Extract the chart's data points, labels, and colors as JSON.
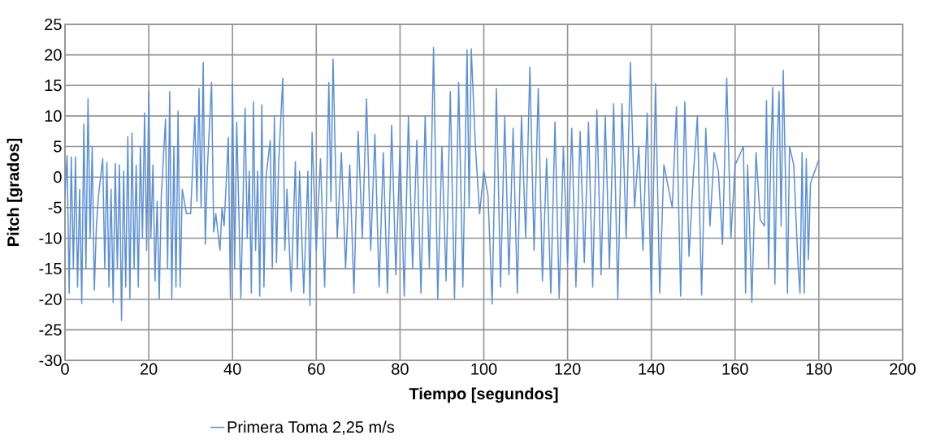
{
  "chart_data": {
    "type": "line",
    "xlabel": "Tiempo [segundos]",
    "ylabel": "Pitch [grados]",
    "xlim": [
      0,
      200
    ],
    "ylim": [
      -30,
      25
    ],
    "xticks": [
      0,
      20,
      40,
      60,
      80,
      100,
      120,
      140,
      160,
      180,
      200
    ],
    "yticks": [
      -30,
      -25,
      -20,
      -15,
      -10,
      -5,
      0,
      5,
      10,
      15,
      20,
      25
    ],
    "grid": true,
    "legend": "bottom",
    "line_style": "solid",
    "series": [
      {
        "name": "Primera Toma 2,25 m/s",
        "color": "#5b8fd6",
        "x": [
          0,
          0.5,
          1,
          1.5,
          2,
          2.5,
          3,
          3.5,
          4,
          4.5,
          5,
          5.5,
          6,
          6.5,
          7,
          7.5,
          8,
          9,
          9.5,
          10,
          10.5,
          11,
          11.5,
          12,
          12.5,
          13,
          13.5,
          14,
          14.5,
          15,
          15.5,
          16,
          16.5,
          17,
          17.5,
          18,
          18.5,
          19,
          19.5,
          20,
          20.5,
          21,
          21.5,
          22,
          22.5,
          23,
          24,
          24.5,
          25,
          25.5,
          26,
          26.5,
          27,
          27.5,
          28,
          29,
          30,
          31,
          31.5,
          32,
          32.5,
          33,
          33.5,
          34,
          35,
          35.5,
          36,
          37,
          37.5,
          38,
          39,
          39.5,
          40,
          40.5,
          41,
          42,
          43,
          43.5,
          44,
          44.5,
          45,
          45.5,
          46,
          46.5,
          47,
          47.5,
          48,
          49,
          49.5,
          50,
          50.5,
          51,
          52,
          52.5,
          53,
          54,
          55,
          55.5,
          56,
          57,
          58,
          58.5,
          59,
          60,
          61,
          62,
          63,
          63.5,
          64,
          65,
          66,
          67,
          68,
          69,
          70,
          71,
          72,
          73,
          74,
          75,
          76,
          77,
          78,
          79,
          80,
          81,
          82,
          83,
          84,
          85,
          86,
          87,
          88,
          89,
          90,
          91,
          92,
          93,
          94,
          95,
          96,
          96.5,
          97,
          98,
          99,
          100,
          101,
          102,
          103,
          104,
          105,
          106,
          107,
          108,
          109,
          110,
          111,
          112,
          113,
          114,
          115,
          116,
          117,
          118,
          119,
          120,
          121,
          122,
          123,
          124,
          125,
          126,
          127,
          128,
          129,
          130,
          131,
          132,
          133,
          134,
          135,
          136,
          137,
          138,
          139,
          140,
          141,
          142,
          143,
          145,
          146,
          147,
          148,
          149,
          150,
          151,
          152,
          153,
          154,
          155,
          156,
          157,
          158,
          159,
          160,
          162,
          162.5,
          163,
          164,
          165,
          166,
          167,
          167.5,
          168,
          168.5,
          169,
          169.5,
          170,
          170.5,
          171,
          171.5,
          172,
          172.5,
          173,
          174,
          175,
          175.5,
          176,
          176.5,
          177,
          177.5,
          178,
          180
        ],
        "values": [
          -3,
          3.5,
          -19,
          3.3,
          -15,
          3.3,
          -18,
          -2,
          -20.7,
          8.7,
          -15,
          12.8,
          -10,
          5,
          -18.5,
          -8,
          -3,
          3,
          -15,
          2.4,
          -18,
          -2,
          -20.5,
          2.2,
          -15,
          2,
          -23.5,
          1,
          -18,
          6.6,
          -20,
          7.2,
          -15,
          2,
          -18,
          5,
          -10,
          10.5,
          -12,
          14,
          -10,
          2,
          -17,
          -4,
          -20,
          -3,
          9.5,
          -15,
          14,
          -20,
          5,
          -18,
          10.8,
          -18,
          -2,
          -6,
          -6,
          10,
          -4,
          14.5,
          -5,
          18.8,
          -11,
          1.5,
          15.5,
          -9,
          -6,
          -12,
          -5,
          -8,
          6.5,
          -20,
          15.3,
          -15,
          9,
          -19.8,
          11.3,
          -10,
          1,
          -19,
          12.3,
          -12,
          1,
          -19.5,
          11.8,
          -18,
          0,
          6,
          -15,
          10,
          -14,
          2,
          16.2,
          -12,
          -2,
          -18.7,
          2.5,
          -15,
          1,
          -19,
          1,
          -21,
          7.3,
          -12,
          3,
          -18,
          15.5,
          -4,
          19.3,
          -10,
          4,
          -15,
          2,
          -19,
          7.5,
          -10,
          12.8,
          -12,
          7,
          -18,
          4,
          -19,
          8.5,
          -16,
          5,
          -19.5,
          10,
          -15,
          6,
          -19,
          10,
          -15,
          21.2,
          -20,
          5,
          -17,
          14,
          -20,
          15.5,
          -18,
          20.8,
          -5,
          21,
          5,
          -6,
          1,
          -3,
          -20.8,
          14.5,
          -18,
          10,
          -16,
          8,
          -19,
          10,
          -10,
          18,
          -12,
          14.5,
          -17,
          3,
          -19,
          9,
          -19.8,
          5,
          -14,
          8,
          -18,
          7.5,
          -14,
          9,
          -18,
          11,
          -16,
          10,
          -15,
          12,
          -20,
          12,
          -10,
          18.8,
          -5,
          5,
          -12,
          10.5,
          -20,
          15.3,
          -19,
          2,
          -5,
          11.5,
          -19.5,
          12.3,
          -13,
          0,
          10,
          -19.3,
          8,
          -8,
          4,
          1,
          -11,
          16.2,
          -10,
          2,
          5,
          -19,
          2,
          -20.5,
          4,
          -7,
          -8,
          12.5,
          -15,
          3,
          14.7,
          -17.5,
          4,
          14,
          -8,
          17.5,
          1,
          -19,
          5,
          2,
          -14,
          -19,
          4,
          -19,
          3,
          -13.5,
          -1,
          2.8
        ]
      }
    ]
  }
}
